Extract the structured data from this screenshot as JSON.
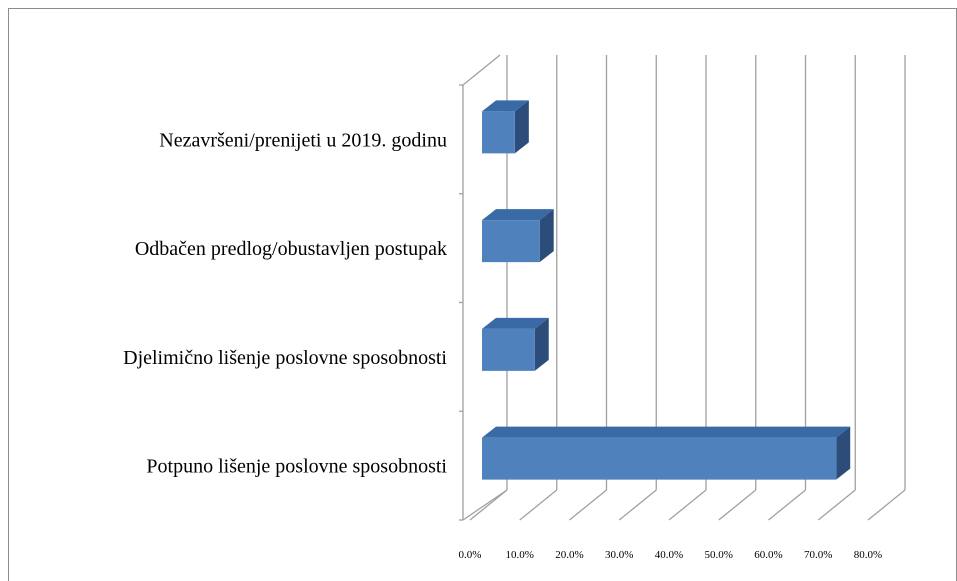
{
  "chart_data": {
    "type": "bar3d_horizontal",
    "categories": [
      "Nezavršeni/prenijeti u 2019. godinu",
      "Odbačen predlog/obustavljen postupak",
      "Djelimično lišenje poslovne sposobnosti",
      "Potpuno lišenje poslovne sposobnosti"
    ],
    "values": [
      6.6,
      11.6,
      10.6,
      71.2
    ],
    "color": "#4f81bd",
    "xlim": [
      0,
      80
    ],
    "xticks": [
      {
        "value": 0,
        "label": "0.0%"
      },
      {
        "value": 10,
        "label": "10.0%"
      },
      {
        "value": 20,
        "label": "20.0%"
      },
      {
        "value": 30,
        "label": "30.0%"
      },
      {
        "value": 40,
        "label": "40.0%"
      },
      {
        "value": 50,
        "label": "50.0%"
      },
      {
        "value": 60,
        "label": "60.0%"
      },
      {
        "value": 70,
        "label": "70.0%"
      },
      {
        "value": 80,
        "label": "80.0%"
      }
    ],
    "grid": true
  }
}
